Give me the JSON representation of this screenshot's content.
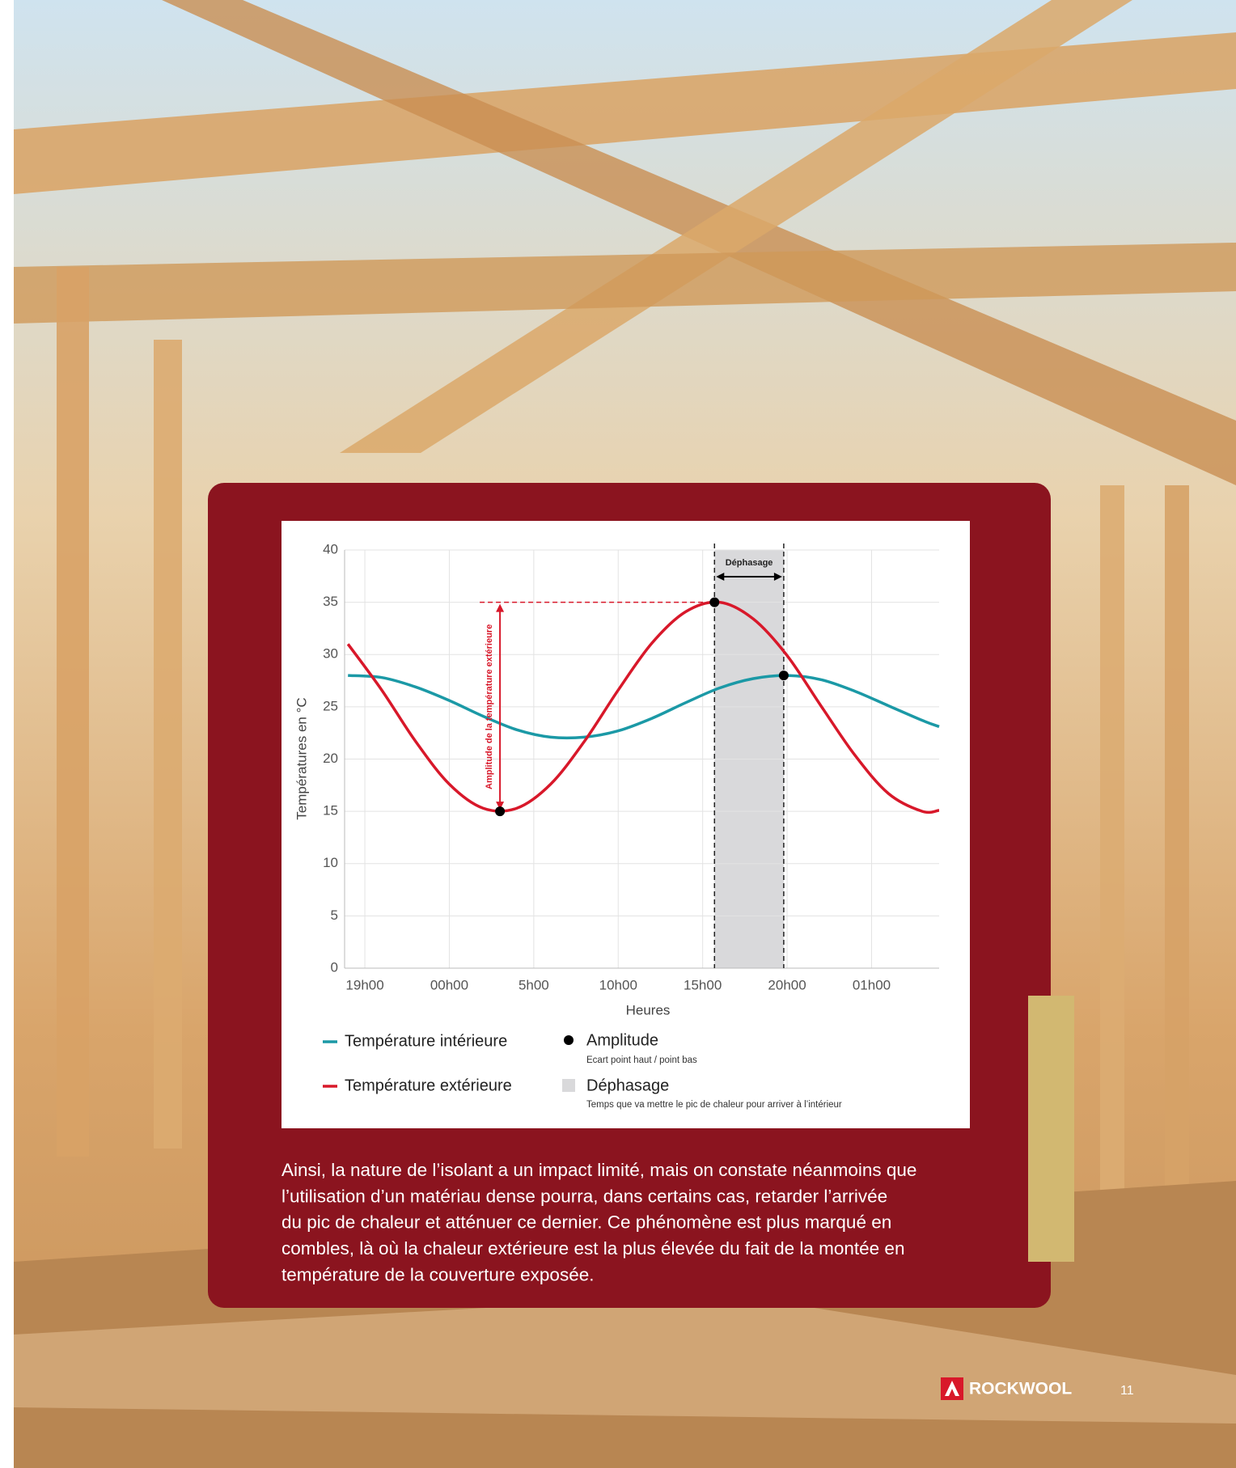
{
  "chart_data": {
    "type": "line",
    "ylabel": "Températures en °C",
    "xlabel": "Heures",
    "x": [
      -1,
      1,
      3,
      5,
      7,
      9,
      11,
      13,
      15,
      17,
      19,
      21,
      23,
      25,
      27,
      29,
      31,
      33,
      34
    ],
    "series": [
      {
        "name": "Température intérieure",
        "color": "#1b99a6",
        "values": [
          28.0,
          27.8,
          26.9,
          25.6,
          24.1,
          22.8,
          22.1,
          22.1,
          22.7,
          23.9,
          25.4,
          26.8,
          27.7,
          28.0,
          27.6,
          26.5,
          25.1,
          23.7,
          23.1
        ]
      },
      {
        "name": "Température extérieure",
        "color": "#d8182a",
        "values": [
          31.0,
          26.6,
          21.7,
          17.6,
          15.3,
          15.3,
          17.6,
          21.7,
          26.6,
          31.1,
          34.1,
          35.0,
          33.4,
          29.9,
          25.1,
          20.4,
          16.7,
          15.0,
          15.1
        ]
      }
    ],
    "markers": {
      "name": "Amplitude",
      "description": "Ecart point haut / point bas",
      "color": "#000000",
      "x": [
        8,
        20.7,
        24.8
      ],
      "y": [
        15,
        35,
        28
      ]
    },
    "band": {
      "name": "Déphasage",
      "description": "Temps que va mettre le pic de chaleur pour arriver à l’intérieur",
      "color": "#d9d9db",
      "x": [
        20.7,
        24.8
      ]
    },
    "amplitude_label": "Amplitude de la température extérieure",
    "xlim": [
      -1.2,
      34
    ],
    "ylim": [
      0,
      40
    ],
    "xticks": [
      {
        "value": 0,
        "label": "19h00"
      },
      {
        "value": 5,
        "label": "00h00"
      },
      {
        "value": 10,
        "label": "5h00"
      },
      {
        "value": 15,
        "label": "10h00"
      },
      {
        "value": 20,
        "label": "15h00"
      },
      {
        "value": 25,
        "label": "20h00"
      },
      {
        "value": 30,
        "label": "01h00"
      }
    ],
    "yticks": [
      0,
      5,
      10,
      15,
      20,
      25,
      30,
      35,
      40
    ],
    "grid": true
  },
  "body": {
    "lines": [
      "Ainsi, la nature de l’isolant a un impact limité, mais on constate néanmoins que",
      "l’utilisation d’un matériau dense pourra, dans certains cas, retarder l’arrivée",
      "du pic de chaleur et atténuer ce dernier. Ce phénomène est plus marqué en",
      "combles, là où la chaleur extérieure est la plus élevée du fait de la montée en",
      "température de la couverture exposée."
    ]
  },
  "footer": {
    "logo": "ROCKWOOL",
    "page_number": "11"
  }
}
